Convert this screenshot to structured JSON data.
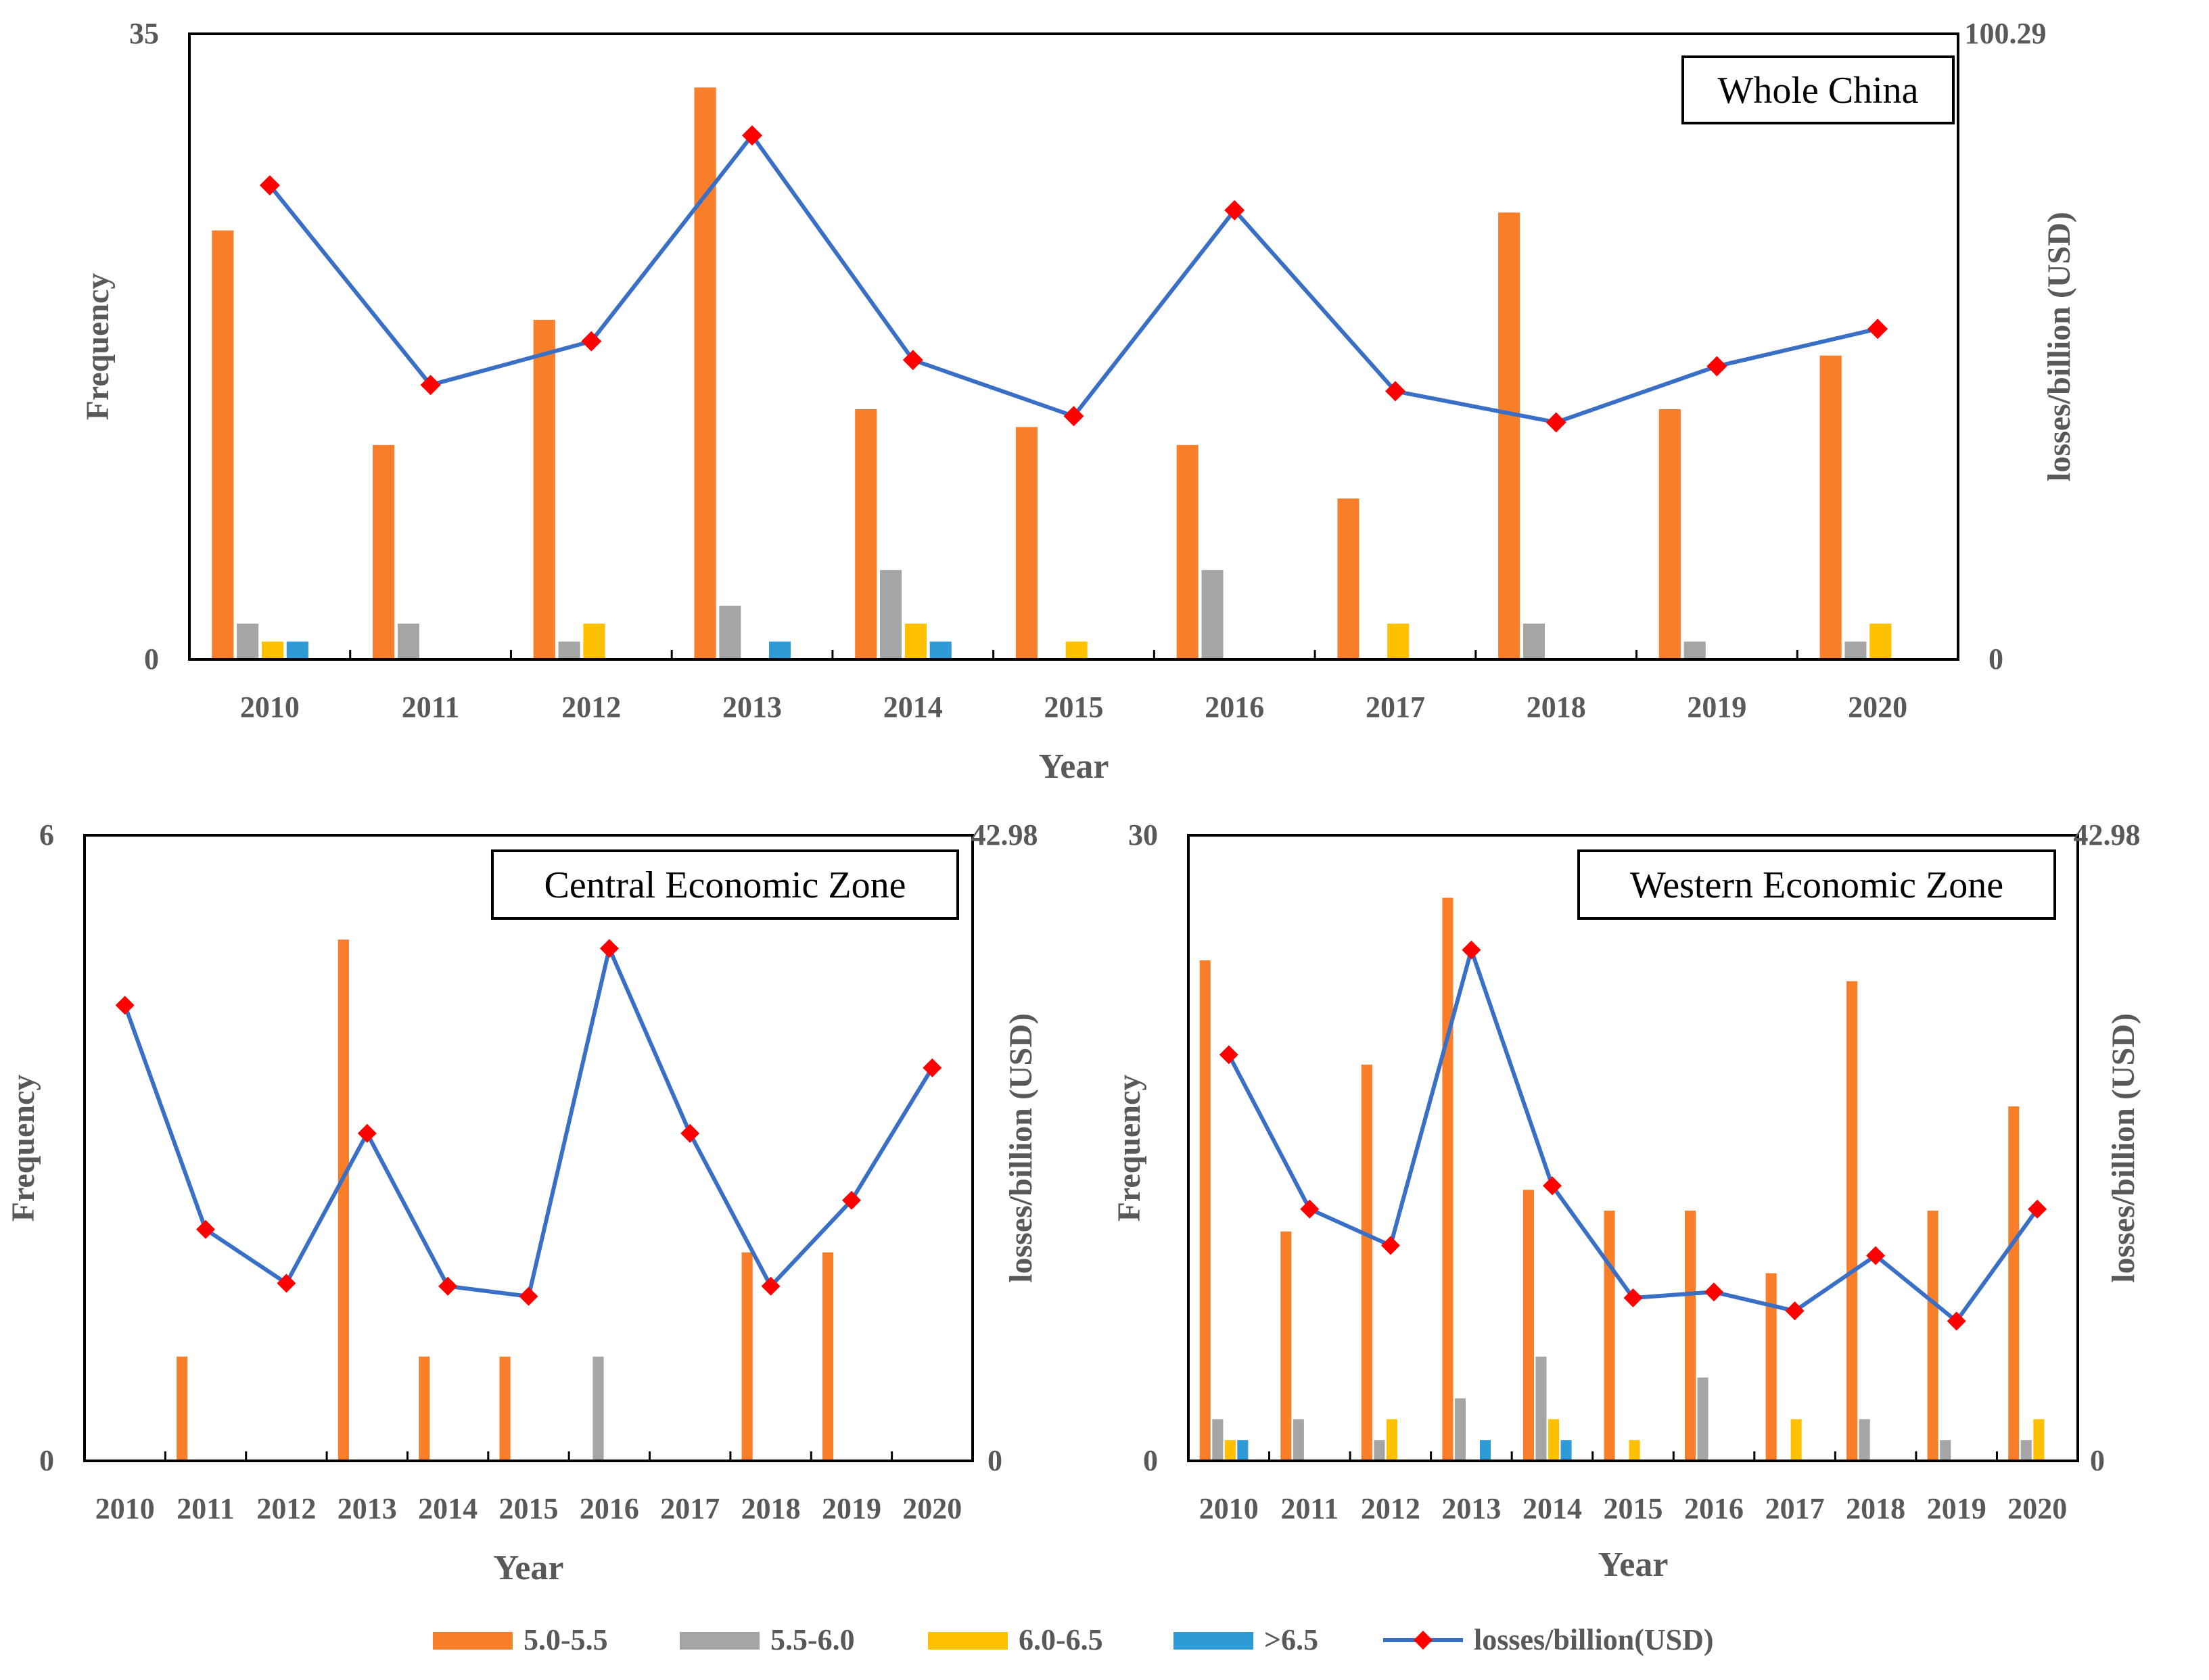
{
  "colors": {
    "s1": "#F97E2A",
    "s2": "#A5A5A5",
    "s3": "#FFC000",
    "s4": "#2E9AD6",
    "line": "#3A6FC6",
    "marker": "#FF0000",
    "axis": "#000000",
    "text": "#595959"
  },
  "legend": {
    "items": [
      {
        "label": "5.0-5.5",
        "color": "#F97E2A"
      },
      {
        "label": "5.5-6.0",
        "color": "#A5A5A5"
      },
      {
        "label": "6.0-6.5",
        "color": "#FFC000"
      },
      {
        "label": ">6.5",
        "color": "#2E9AD6"
      },
      {
        "label": "losses/billion(USD)",
        "color": "#3A6FC6"
      }
    ]
  },
  "chart_data": [
    {
      "type": "bar",
      "title": "Whole China",
      "xlabel": "Year",
      "ylabel": "Frequency",
      "y2label": "losses/billion (USD)",
      "ylim": [
        0,
        35
      ],
      "y2lim": [
        0,
        100.29
      ],
      "y_ticks": [
        "0",
        "35"
      ],
      "y2_ticks": [
        "0",
        "100.29"
      ],
      "categories": [
        "2010",
        "2011",
        "2012",
        "2013",
        "2014",
        "2015",
        "2016",
        "2017",
        "2018",
        "2019",
        "2020"
      ],
      "series": [
        {
          "name": "5.0-5.5",
          "values": [
            24,
            12,
            19,
            32,
            14,
            13,
            12,
            9,
            25,
            14,
            17
          ]
        },
        {
          "name": "5.5-6.0",
          "values": [
            2,
            2,
            1,
            3,
            5,
            0,
            5,
            0,
            2,
            1,
            1
          ]
        },
        {
          "name": "6.0-6.5",
          "values": [
            1,
            0,
            2,
            0,
            2,
            1,
            0,
            2,
            0,
            0,
            2
          ]
        },
        {
          "name": ">6.5",
          "values": [
            1,
            0,
            0,
            1,
            1,
            0,
            0,
            0,
            0,
            0,
            0
          ]
        },
        {
          "name": "losses/billion(USD)",
          "type": "line",
          "axis": "right",
          "values": [
            76,
            44,
            51,
            84,
            48,
            39,
            72,
            43,
            38,
            47,
            53
          ]
        }
      ]
    },
    {
      "type": "bar",
      "title": "Central Economic Zone",
      "xlabel": "Year",
      "ylabel": "Frequency",
      "y2label": "losses/billion (USD)",
      "ylim": [
        0,
        6
      ],
      "y2lim": [
        0,
        42.98
      ],
      "y_ticks": [
        "0",
        "6"
      ],
      "y2_ticks": [
        "0",
        "42.98"
      ],
      "categories": [
        "2010",
        "2011",
        "2012",
        "2013",
        "2014",
        "2015",
        "2016",
        "2017",
        "2018",
        "2019",
        "2020"
      ],
      "series": [
        {
          "name": "5.0-5.5",
          "values": [
            0,
            1,
            0,
            5,
            1,
            1,
            0,
            0,
            2,
            2,
            0
          ]
        },
        {
          "name": "5.5-6.0",
          "values": [
            0,
            0,
            0,
            0,
            0,
            0,
            1,
            0,
            0,
            0,
            0
          ]
        },
        {
          "name": "6.0-6.5",
          "values": [
            0,
            0,
            0,
            0,
            0,
            0,
            0,
            0,
            0,
            0,
            0
          ]
        },
        {
          "name": ">6.5",
          "values": [
            0,
            0,
            0,
            0,
            0,
            0,
            0,
            0,
            0,
            0,
            0
          ]
        },
        {
          "name": "losses/billion(USD)",
          "type": "line",
          "axis": "right",
          "values": [
            31.3,
            15.9,
            12.2,
            22.5,
            12.0,
            11.3,
            35.2,
            22.5,
            12.0,
            17.9,
            27.0
          ]
        }
      ]
    },
    {
      "type": "bar",
      "title": "Western Economic Zone",
      "xlabel": "Year",
      "ylabel": "Frequency",
      "y2label": "losses/billion (USD)",
      "ylim": [
        0,
        30
      ],
      "y2lim": [
        0,
        42.98
      ],
      "y_ticks": [
        "0",
        "30"
      ],
      "y2_ticks": [
        "0",
        "42.98"
      ],
      "categories": [
        "2010",
        "2011",
        "2012",
        "2013",
        "2014",
        "2015",
        "2016",
        "2017",
        "2018",
        "2019",
        "2020"
      ],
      "series": [
        {
          "name": "5.0-5.5",
          "values": [
            24,
            11,
            19,
            27,
            13,
            12,
            12,
            9,
            23,
            12,
            17
          ]
        },
        {
          "name": "5.5-6.0",
          "values": [
            2,
            2,
            1,
            3,
            5,
            0,
            4,
            0,
            2,
            1,
            1
          ]
        },
        {
          "name": "6.0-6.5",
          "values": [
            1,
            0,
            2,
            0,
            2,
            1,
            0,
            2,
            0,
            0,
            2
          ]
        },
        {
          "name": ">6.5",
          "values": [
            1,
            0,
            0,
            1,
            1,
            0,
            0,
            0,
            0,
            0,
            0
          ]
        },
        {
          "name": "losses/billion(USD)",
          "type": "line",
          "axis": "right",
          "values": [
            27.9,
            17.3,
            14.8,
            35.1,
            18.9,
            11.2,
            11.6,
            10.3,
            14.1,
            9.6,
            17.3
          ]
        }
      ]
    }
  ]
}
